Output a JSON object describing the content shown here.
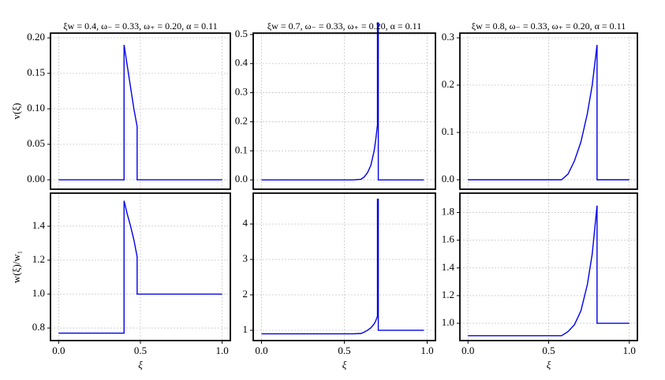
{
  "chart_data": [
    {
      "type": "line",
      "title": "ξw = 0.4, ω₋ = 0.33, ω₊ = 0.20, α = 0.11",
      "ylabel": "v(ξ)",
      "x": [
        0,
        0.4,
        0.4,
        0.42,
        0.44,
        0.46,
        0.48,
        0.48,
        1.0
      ],
      "values": [
        0,
        0,
        0.19,
        0.16,
        0.13,
        0.1,
        0.075,
        0,
        0
      ],
      "color": "#0000ee",
      "xlim": [
        -0.05,
        1.05
      ],
      "xticks": [
        {
          "value": 0,
          "label": "0.0"
        },
        {
          "value": 0.5,
          "label": "0.5"
        },
        {
          "value": 1,
          "label": "1.0"
        }
      ],
      "show_xtick_labels": false,
      "ylim": [
        -0.0133,
        0.2067
      ],
      "yticks": [
        {
          "value": 0,
          "label": "0.00"
        },
        {
          "value": 0.05,
          "label": "0.05"
        },
        {
          "value": 0.1,
          "label": "0.10"
        },
        {
          "value": 0.15,
          "label": "0.15"
        },
        {
          "value": 0.2,
          "label": "0.20"
        }
      ],
      "grid": true
    },
    {
      "type": "line",
      "title": "ξw = 0.7, ω₋ = 0.33, ω₊ = 0.20, α = 0.11",
      "x": [
        0,
        0.55,
        0.6,
        0.62,
        0.64,
        0.66,
        0.68,
        0.69,
        0.7,
        0.7,
        0.705,
        0.705,
        0.98
      ],
      "values": [
        0,
        0,
        0.002,
        0.01,
        0.025,
        0.05,
        0.1,
        0.14,
        0.19,
        0.54,
        0.54,
        0,
        0
      ],
      "color": "#0000ee",
      "xlim": [
        -0.05,
        1.05
      ],
      "xticks": [
        {
          "value": 0,
          "label": "0.0"
        },
        {
          "value": 0.5,
          "label": "0.5"
        },
        {
          "value": 1,
          "label": "1.0"
        }
      ],
      "show_xtick_labels": false,
      "ylim": [
        -0.032,
        0.505
      ],
      "yticks": [
        {
          "value": 0,
          "label": "0.0"
        },
        0.1,
        0.2,
        0.3,
        0.4,
        0.5
      ],
      "grid": true
    },
    {
      "type": "line",
      "title": "ξw = 0.8, ω₋ = 0.33, ω₊ = 0.20, α = 0.11",
      "x": [
        0,
        0.58,
        0.62,
        0.66,
        0.7,
        0.74,
        0.77,
        0.8,
        0.8,
        1.0
      ],
      "values": [
        0,
        0,
        0.012,
        0.04,
        0.08,
        0.14,
        0.2,
        0.285,
        0,
        0
      ],
      "color": "#0000ee",
      "xlim": [
        -0.05,
        1.05
      ],
      "xticks": [
        {
          "value": 0,
          "label": "0.0"
        },
        {
          "value": 0.5,
          "label": "0.5"
        },
        {
          "value": 1,
          "label": "1.0"
        }
      ],
      "show_xtick_labels": false,
      "ylim": [
        -0.02,
        0.31
      ],
      "yticks": [
        {
          "value": 0,
          "label": "0.0"
        },
        0.1,
        0.2,
        0.3
      ],
      "grid": true
    },
    {
      "type": "line",
      "ylabel": "w(ξ)/w₁",
      "xlabel": "ξ",
      "x": [
        0,
        0.4,
        0.4,
        0.42,
        0.44,
        0.46,
        0.48,
        0.48,
        1.0
      ],
      "values": [
        0.77,
        0.77,
        1.55,
        1.47,
        1.4,
        1.32,
        1.22,
        1.0,
        1.0
      ],
      "color": "#0000ee",
      "xlim": [
        -0.05,
        1.05
      ],
      "xticks": [
        {
          "value": 0,
          "label": "0.0"
        },
        {
          "value": 0.5,
          "label": "0.5"
        },
        {
          "value": 1,
          "label": "1.0"
        }
      ],
      "show_xtick_labels": true,
      "ylim": [
        0.726,
        1.595
      ],
      "yticks": [
        0.8,
        {
          "value": 1,
          "label": "1.0"
        },
        1.2,
        1.4
      ],
      "grid": true
    },
    {
      "type": "line",
      "xlabel": "ξ",
      "x": [
        0,
        0.55,
        0.6,
        0.62,
        0.64,
        0.66,
        0.68,
        0.69,
        0.7,
        0.7,
        0.705,
        0.705,
        0.98
      ],
      "values": [
        0.9,
        0.9,
        0.91,
        0.95,
        1.0,
        1.07,
        1.18,
        1.27,
        1.4,
        4.7,
        4.7,
        1.0,
        1.0
      ],
      "color": "#0000ee",
      "xlim": [
        -0.05,
        1.05
      ],
      "xticks": [
        {
          "value": 0,
          "label": "0.0"
        },
        {
          "value": 0.5,
          "label": "0.5"
        },
        {
          "value": 1,
          "label": "1.0"
        }
      ],
      "show_xtick_labels": true,
      "ylim": [
        0.71,
        4.87
      ],
      "yticks": [
        1,
        2,
        3,
        4
      ],
      "grid": true
    },
    {
      "type": "line",
      "xlabel": "ξ",
      "x": [
        0,
        0.58,
        0.62,
        0.66,
        0.7,
        0.74,
        0.77,
        0.8,
        0.8,
        1.0
      ],
      "values": [
        0.91,
        0.91,
        0.94,
        0.99,
        1.09,
        1.28,
        1.5,
        1.85,
        1.0,
        1.0
      ],
      "color": "#0000ee",
      "xlim": [
        -0.05,
        1.05
      ],
      "xticks": [
        {
          "value": 0,
          "label": "0.0"
        },
        {
          "value": 0.5,
          "label": "0.5"
        },
        {
          "value": 1,
          "label": "1.0"
        }
      ],
      "show_xtick_labels": true,
      "ylim": [
        0.875,
        1.94
      ],
      "yticks": [
        {
          "value": 1,
          "label": "1.0"
        },
        1.2,
        1.4,
        1.6,
        1.8
      ],
      "grid": true
    }
  ]
}
